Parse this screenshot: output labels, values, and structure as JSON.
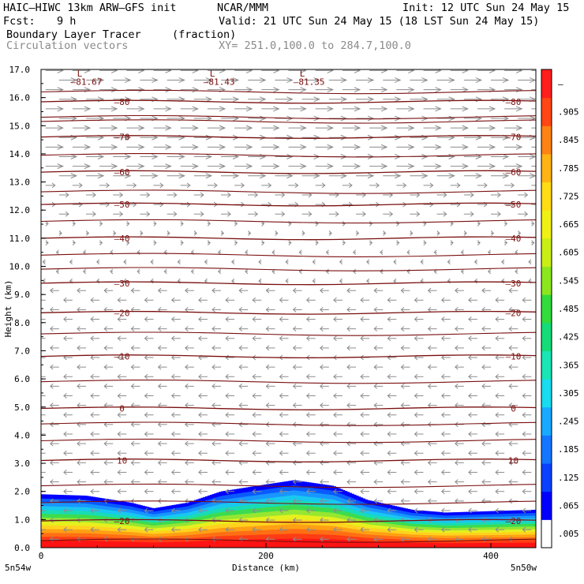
{
  "header": {
    "model": "HAIC–HIWC 13km ARW–GFS init",
    "org": "NCAR/MMM",
    "init": "Init: 12 UTC Sun 24 May 15",
    "fcst_label": "Fcst:",
    "fcst_value": "9 h",
    "valid": "Valid: 21 UTC Sun 24 May 15 (18 LST Sun 24 May 15)",
    "field": "Boundary Layer Tracer",
    "units": "(fraction)",
    "vectors": "Circulation vectors",
    "xy": "XY= 251.0,100.0 to 284.7,100.0"
  },
  "chart_data": {
    "type": "heatmap",
    "xlabel": "Distance (km)",
    "ylabel": "Height (km)",
    "xlim": [
      0,
      440
    ],
    "ylim": [
      0,
      17
    ],
    "x_ticks": [
      "0",
      "200",
      "400"
    ],
    "y_ticks": [
      "0.0",
      "1.0",
      "2.0",
      "3.0",
      "4.0",
      "5.0",
      "6.0",
      "7.0",
      "8.0",
      "9.0",
      "10.0",
      "11.0",
      "12.0",
      "13.0",
      "14.0",
      "15.0",
      "16.0",
      "17.0"
    ],
    "x_endpoints": {
      "left": "5n54w",
      "right": "5n50w"
    },
    "colorbar": {
      "labels": [
        ".005",
        ".065",
        ".125",
        ".185",
        ".245",
        ".305",
        ".365",
        ".425",
        ".485",
        ".545",
        ".605",
        ".665",
        ".725",
        ".785",
        ".845",
        ".905",
        "–"
      ],
      "colors": [
        "#ffffff",
        "#0000ff",
        "#0a40ff",
        "#1476ff",
        "#19aaff",
        "#19dcf0",
        "#19e6b4",
        "#14dc78",
        "#32dc3c",
        "#8ce61e",
        "#c8ee14",
        "#f0f014",
        "#ffdc14",
        "#ffb414",
        "#ff8214",
        "#ff4614",
        "#ff1e1e"
      ]
    },
    "tracer_top_km": [
      [
        0,
        1.9
      ],
      [
        40,
        1.85
      ],
      [
        80,
        1.6
      ],
      [
        100,
        1.4
      ],
      [
        130,
        1.6
      ],
      [
        160,
        2.0
      ],
      [
        200,
        2.25
      ],
      [
        225,
        2.4
      ],
      [
        260,
        2.2
      ],
      [
        290,
        1.7
      ],
      [
        330,
        1.35
      ],
      [
        360,
        1.25
      ],
      [
        400,
        1.3
      ],
      [
        440,
        1.35
      ]
    ],
    "temperature_contours": [
      {
        "label": "–20",
        "height_km": 0.95
      },
      {
        "label": "10",
        "height_km": 3.1
      },
      {
        "label": "0",
        "height_km": 4.95
      },
      {
        "label": "–10",
        "height_km": 6.8
      },
      {
        "label": "–20",
        "height_km": 8.35
      },
      {
        "label": "–30",
        "height_km": 9.4
      },
      {
        "label": "–40",
        "height_km": 11.0
      },
      {
        "label": "–50",
        "height_km": 12.2
      },
      {
        "label": "–60",
        "height_km": 13.35
      },
      {
        "label": "–70",
        "height_km": 14.6
      },
      {
        "label": "–80",
        "height_km": 15.85
      }
    ],
    "lows": [
      {
        "label": "L",
        "value": "–81.67",
        "x_km": 32
      },
      {
        "label": "L",
        "value": "–81.43",
        "x_km": 150
      },
      {
        "label": "L",
        "value": "–81.35",
        "x_km": 230
      }
    ]
  }
}
